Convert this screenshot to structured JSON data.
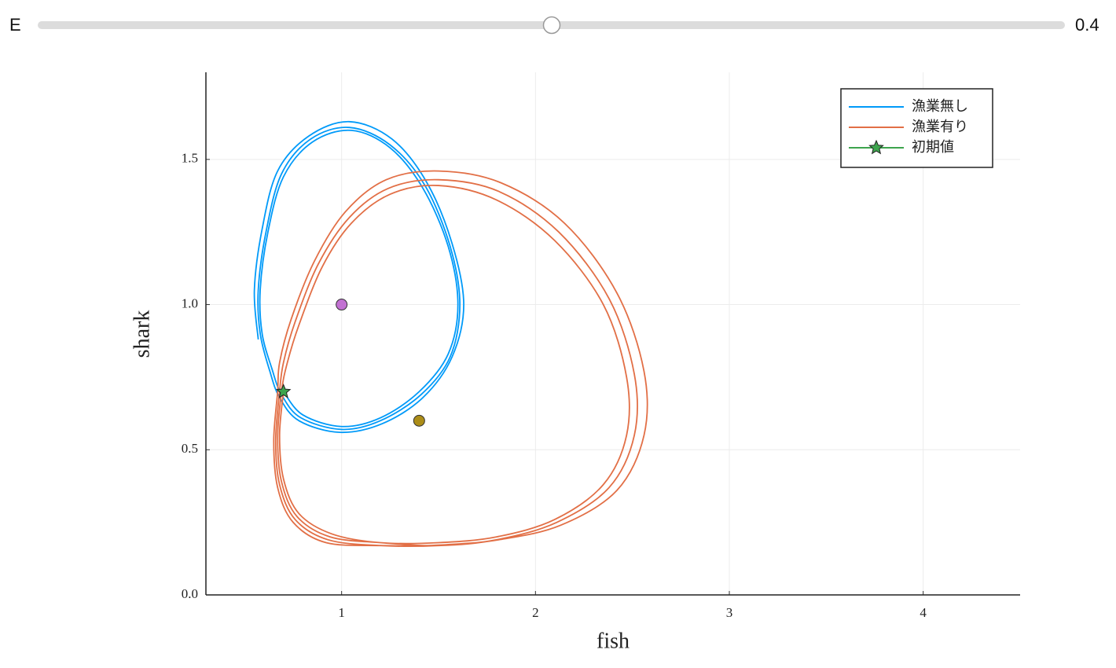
{
  "slider": {
    "label": "E",
    "value": 0.4
  },
  "chart_data": {
    "type": "line",
    "x_label": "fish",
    "y_label": "shark",
    "xlim": [
      0.3,
      4.5
    ],
    "ylim": [
      0,
      1.8
    ],
    "xticks": [
      1,
      2,
      3,
      4
    ],
    "yticks": [
      {
        "value": 0,
        "label": "0.0"
      },
      0.5,
      {
        "value": 1,
        "label": "1.0"
      },
      1.5
    ],
    "grid": true,
    "legend": "top-right",
    "series": [
      {
        "name": "漁業無し",
        "color": "#009af9",
        "x": [
          0.7,
          0.8,
          1.0,
          1.2,
          1.4,
          1.55,
          1.6,
          1.55,
          1.42,
          1.25,
          1.05,
          0.85,
          0.7,
          0.62,
          0.58,
          0.59,
          0.64,
          0.69,
          0.79,
          1.0,
          1.2,
          1.41,
          1.56,
          1.61,
          1.56,
          1.43,
          1.25,
          1.04,
          0.84,
          0.69,
          0.61,
          0.57,
          0.58,
          0.63,
          0.68,
          0.78,
          0.99,
          1.21,
          1.42,
          1.57,
          1.63,
          1.57,
          1.44,
          1.26,
          1.04,
          0.83,
          0.67,
          0.59,
          0.55,
          0.57
        ],
        "values": [
          0.7,
          0.62,
          0.58,
          0.61,
          0.7,
          0.83,
          1.0,
          1.2,
          1.4,
          1.54,
          1.6,
          1.56,
          1.44,
          1.25,
          1.05,
          0.9,
          0.78,
          0.69,
          0.61,
          0.57,
          0.6,
          0.69,
          0.82,
          1.0,
          1.2,
          1.41,
          1.55,
          1.61,
          1.57,
          1.45,
          1.25,
          1.05,
          0.9,
          0.77,
          0.68,
          0.6,
          0.56,
          0.59,
          0.68,
          0.82,
          1.0,
          1.21,
          1.42,
          1.57,
          1.63,
          1.58,
          1.46,
          1.26,
          1.05,
          0.88
        ]
      },
      {
        "name": "漁業有り",
        "color": "#e26f46",
        "x": [
          0.7,
          0.68,
          0.7,
          0.78,
          0.95,
          1.2,
          1.5,
          1.8,
          2.1,
          2.35,
          2.47,
          2.47,
          2.35,
          2.1,
          1.8,
          1.5,
          1.25,
          1.05,
          0.9,
          0.78,
          0.72,
          0.69,
          0.67,
          0.69,
          0.77,
          0.94,
          1.2,
          1.5,
          1.8,
          2.11,
          2.38,
          2.51,
          2.51,
          2.38,
          2.12,
          1.81,
          1.5,
          1.24,
          1.04,
          0.88,
          0.76,
          0.7,
          0.68,
          0.66,
          0.68,
          0.76,
          0.93,
          1.2,
          1.5,
          1.81,
          2.13,
          2.42,
          2.56,
          2.56,
          2.42,
          2.15,
          1.82,
          1.5,
          1.23,
          1.02,
          0.86,
          0.74,
          0.68,
          0.67,
          0.65,
          0.67,
          0.75,
          0.92,
          1.2,
          1.45,
          1.7
        ],
        "values": [
          0.7,
          0.55,
          0.4,
          0.28,
          0.21,
          0.18,
          0.18,
          0.2,
          0.26,
          0.38,
          0.55,
          0.75,
          1.0,
          1.22,
          1.36,
          1.41,
          1.38,
          1.28,
          1.13,
          0.93,
          0.8,
          0.7,
          0.54,
          0.39,
          0.27,
          0.2,
          0.18,
          0.17,
          0.19,
          0.25,
          0.37,
          0.55,
          0.76,
          1.02,
          1.25,
          1.39,
          1.43,
          1.4,
          1.3,
          1.14,
          0.94,
          0.8,
          0.7,
          0.53,
          0.38,
          0.26,
          0.19,
          0.17,
          0.17,
          0.19,
          0.24,
          0.36,
          0.55,
          0.77,
          1.04,
          1.28,
          1.42,
          1.46,
          1.43,
          1.32,
          1.15,
          0.95,
          0.8,
          0.7,
          0.53,
          0.37,
          0.25,
          0.18,
          0.17,
          0.17,
          0.18
        ]
      },
      {
        "name": "初期値",
        "color": "#3da44d",
        "marker": "star",
        "x": [
          0.7
        ],
        "values": [
          0.7
        ]
      }
    ],
    "points": [
      {
        "x": 1,
        "y": 1,
        "color": "#c271d2"
      },
      {
        "x": 1.4,
        "y": 0.6,
        "color": "#ac8d18"
      }
    ]
  }
}
